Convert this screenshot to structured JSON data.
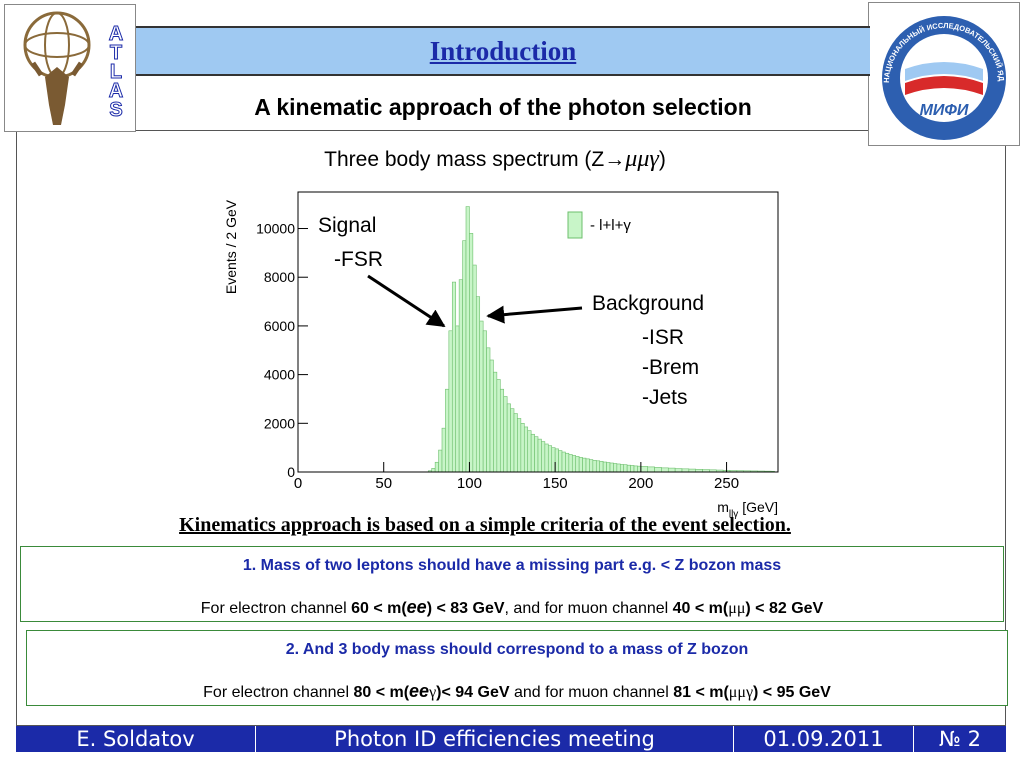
{
  "header": {
    "title": "Introduction",
    "subtitle": "A kinematic approach of the photon selection",
    "left_logo_letters": [
      "A",
      "T",
      "L",
      "A",
      "S"
    ],
    "right_logo_text": "НАЦИОНАЛЬНЫЙ ИССЛЕДОВАТЕЛЬСКИЙ ЯДЕРНЫЙ УНИВЕРСИТЕТ",
    "right_logo_mark": "МИФИ"
  },
  "spectrum": {
    "title_prefix": "Three body mass spectrum  (Z",
    "title_arrow": "→",
    "title_symbols": "μμγ",
    "title_suffix": ")"
  },
  "annotations": {
    "signal": "Signal",
    "fsr": "-FSR",
    "background": "Background",
    "isr": "-ISR",
    "brem": "-Brem",
    "jets": "-Jets"
  },
  "chart_data": {
    "type": "bar",
    "ylabel": "Events / 2 GeV",
    "xlabel": "m_llγ [GeV]",
    "xlim": [
      0,
      280
    ],
    "ylim": [
      0,
      11500
    ],
    "xticks": [
      "0",
      "50",
      "100",
      "150",
      "200",
      "250"
    ],
    "yticks": [
      "0",
      "2000",
      "4000",
      "6000",
      "8000",
      "10000"
    ],
    "legend": "- l+l+γ",
    "legend_position": "top-right",
    "colors": {
      "fill": "#c8f5c8",
      "stroke": "#6dbf6d"
    },
    "bin_width": 2,
    "bins_start": [
      76,
      78,
      80,
      82,
      84,
      86,
      88,
      90,
      92,
      94,
      96,
      98,
      100,
      102,
      104,
      106,
      108,
      110,
      112,
      114,
      116,
      118,
      120,
      122,
      124,
      126,
      128,
      130,
      132,
      134,
      136,
      138,
      140,
      142,
      144,
      146,
      148,
      150,
      152,
      154,
      156,
      158,
      160,
      162,
      164,
      166,
      168,
      170,
      172,
      174,
      176,
      178,
      180,
      182,
      184,
      186,
      188,
      190,
      192,
      194,
      196,
      198,
      200,
      204,
      208,
      212,
      216,
      220,
      224,
      228,
      232,
      236,
      240,
      244,
      248,
      252,
      256,
      260,
      264,
      268,
      272,
      276
    ],
    "values": [
      50,
      150,
      400,
      900,
      1800,
      3400,
      5800,
      7800,
      6000,
      7900,
      9500,
      10900,
      9800,
      8500,
      7200,
      6200,
      5800,
      5100,
      4600,
      4100,
      3800,
      3400,
      3100,
      2800,
      2600,
      2400,
      2200,
      2000,
      1850,
      1700,
      1550,
      1450,
      1350,
      1250,
      1150,
      1080,
      1000,
      950,
      880,
      820,
      770,
      720,
      680,
      640,
      600,
      570,
      540,
      510,
      480,
      460,
      440,
      410,
      390,
      370,
      350,
      330,
      310,
      300,
      280,
      270,
      250,
      240,
      230,
      210,
      190,
      170,
      160,
      140,
      130,
      120,
      110,
      100,
      90,
      80,
      70,
      60,
      55,
      50,
      45,
      40,
      35,
      30
    ]
  },
  "criteria": {
    "heading": "Kinematics approach is based on a simple criteria of the event selection.",
    "item1": {
      "title": "1. Mass of two leptons should have a missing part e.g. < Z bozon mass",
      "p1": "For electron channel ",
      "b1": "60 < m(",
      "ee": "ee",
      "b2": ") < 83 GeV",
      "p2": ", and for muon channel ",
      "b3": "40 < m(",
      "mumu": "μμ",
      "b4": ") < 82 GeV"
    },
    "item2": {
      "title": "2. And 3 body mass should correspond to a mass of Z bozon",
      "p1": "For electron channel ",
      "b1": "80 < m(",
      "ee": "ee",
      "g1": "γ",
      "b2": ")< 94 GeV",
      "p2": " and for muon channel ",
      "b3": "81 < m(",
      "mumug": "μμγ",
      "b4": ") < 95 GeV"
    }
  },
  "footer": {
    "author": "E. Soldatov",
    "meeting": "Photon ID efficiencies meeting",
    "date": "01.09.2011",
    "page": "№ 2"
  }
}
